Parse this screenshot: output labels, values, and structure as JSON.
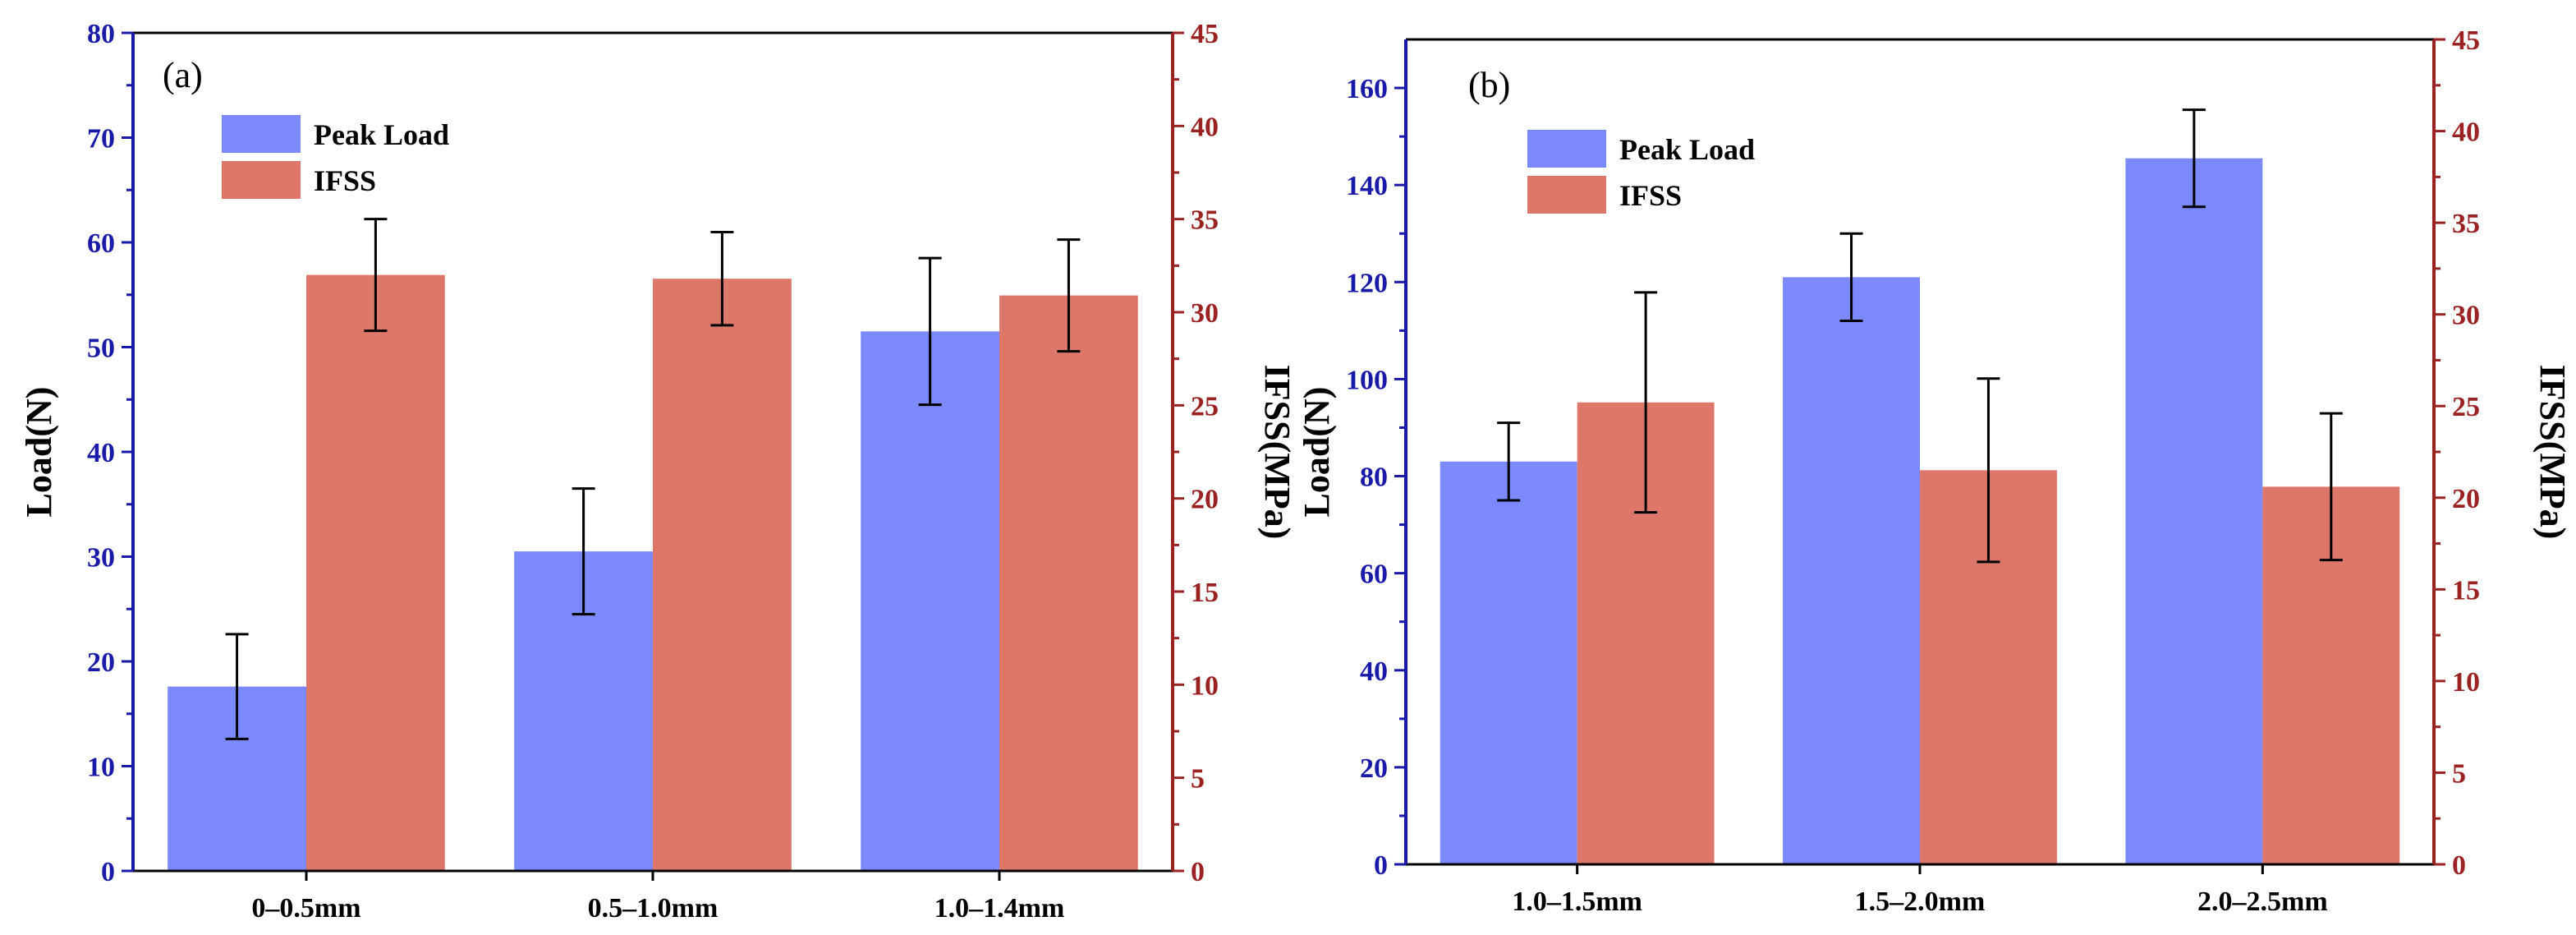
{
  "colors": {
    "peak_load": "#7b89fb",
    "ifss": "#dc776a",
    "left_axis": "#1a1aa8",
    "right_axis": "#9a2222",
    "error_bar": "#000000"
  },
  "chart_data": [
    {
      "type": "bar",
      "panel_label": "(a)",
      "categories": [
        "0–0.5mm",
        "0.5–1.0mm",
        "1.0–1.4mm"
      ],
      "series": [
        {
          "name": "Peak Load",
          "axis": "left",
          "values": [
            17.6,
            30.5,
            51.5
          ],
          "errors": [
            5.0,
            6.0,
            7.0
          ]
        },
        {
          "name": "IFSS",
          "axis": "right",
          "values": [
            32.0,
            31.8,
            30.9
          ],
          "errors": [
            3.0,
            2.5,
            3.0
          ]
        }
      ],
      "ylabel": "Load(N)",
      "ylabel_right": "IFSS(MPa)",
      "ylim": [
        0,
        80
      ],
      "ylim_right": [
        0,
        45
      ],
      "yticks": [
        0,
        10,
        20,
        30,
        40,
        50,
        60,
        70,
        80
      ],
      "yticks_right": [
        0,
        5,
        10,
        15,
        20,
        25,
        30,
        35,
        40,
        45
      ],
      "legend": [
        "Peak Load",
        "IFSS"
      ],
      "legend_position": "top-left"
    },
    {
      "type": "bar",
      "panel_label": "(b)",
      "categories": [
        "1.0–1.5mm",
        "1.5–2.0mm",
        "2.0–2.5mm"
      ],
      "series": [
        {
          "name": "Peak Load",
          "axis": "left",
          "values": [
            83,
            121,
            145.5
          ],
          "errors": [
            8,
            9,
            10
          ]
        },
        {
          "name": "IFSS",
          "axis": "right",
          "values": [
            25.2,
            21.5,
            20.6
          ],
          "errors": [
            6.0,
            5.0,
            4.0
          ]
        }
      ],
      "ylabel": "Load(N)",
      "ylabel_right": "IFSS(MPa)",
      "ylim": [
        0,
        170
      ],
      "ylim_right": [
        0,
        45
      ],
      "yticks": [
        0,
        20,
        40,
        60,
        80,
        100,
        120,
        140,
        160
      ],
      "yticks_right": [
        0,
        5,
        10,
        15,
        20,
        25,
        30,
        35,
        40,
        45
      ],
      "legend": [
        "Peak Load",
        "IFSS"
      ],
      "legend_position": "top-left"
    }
  ]
}
